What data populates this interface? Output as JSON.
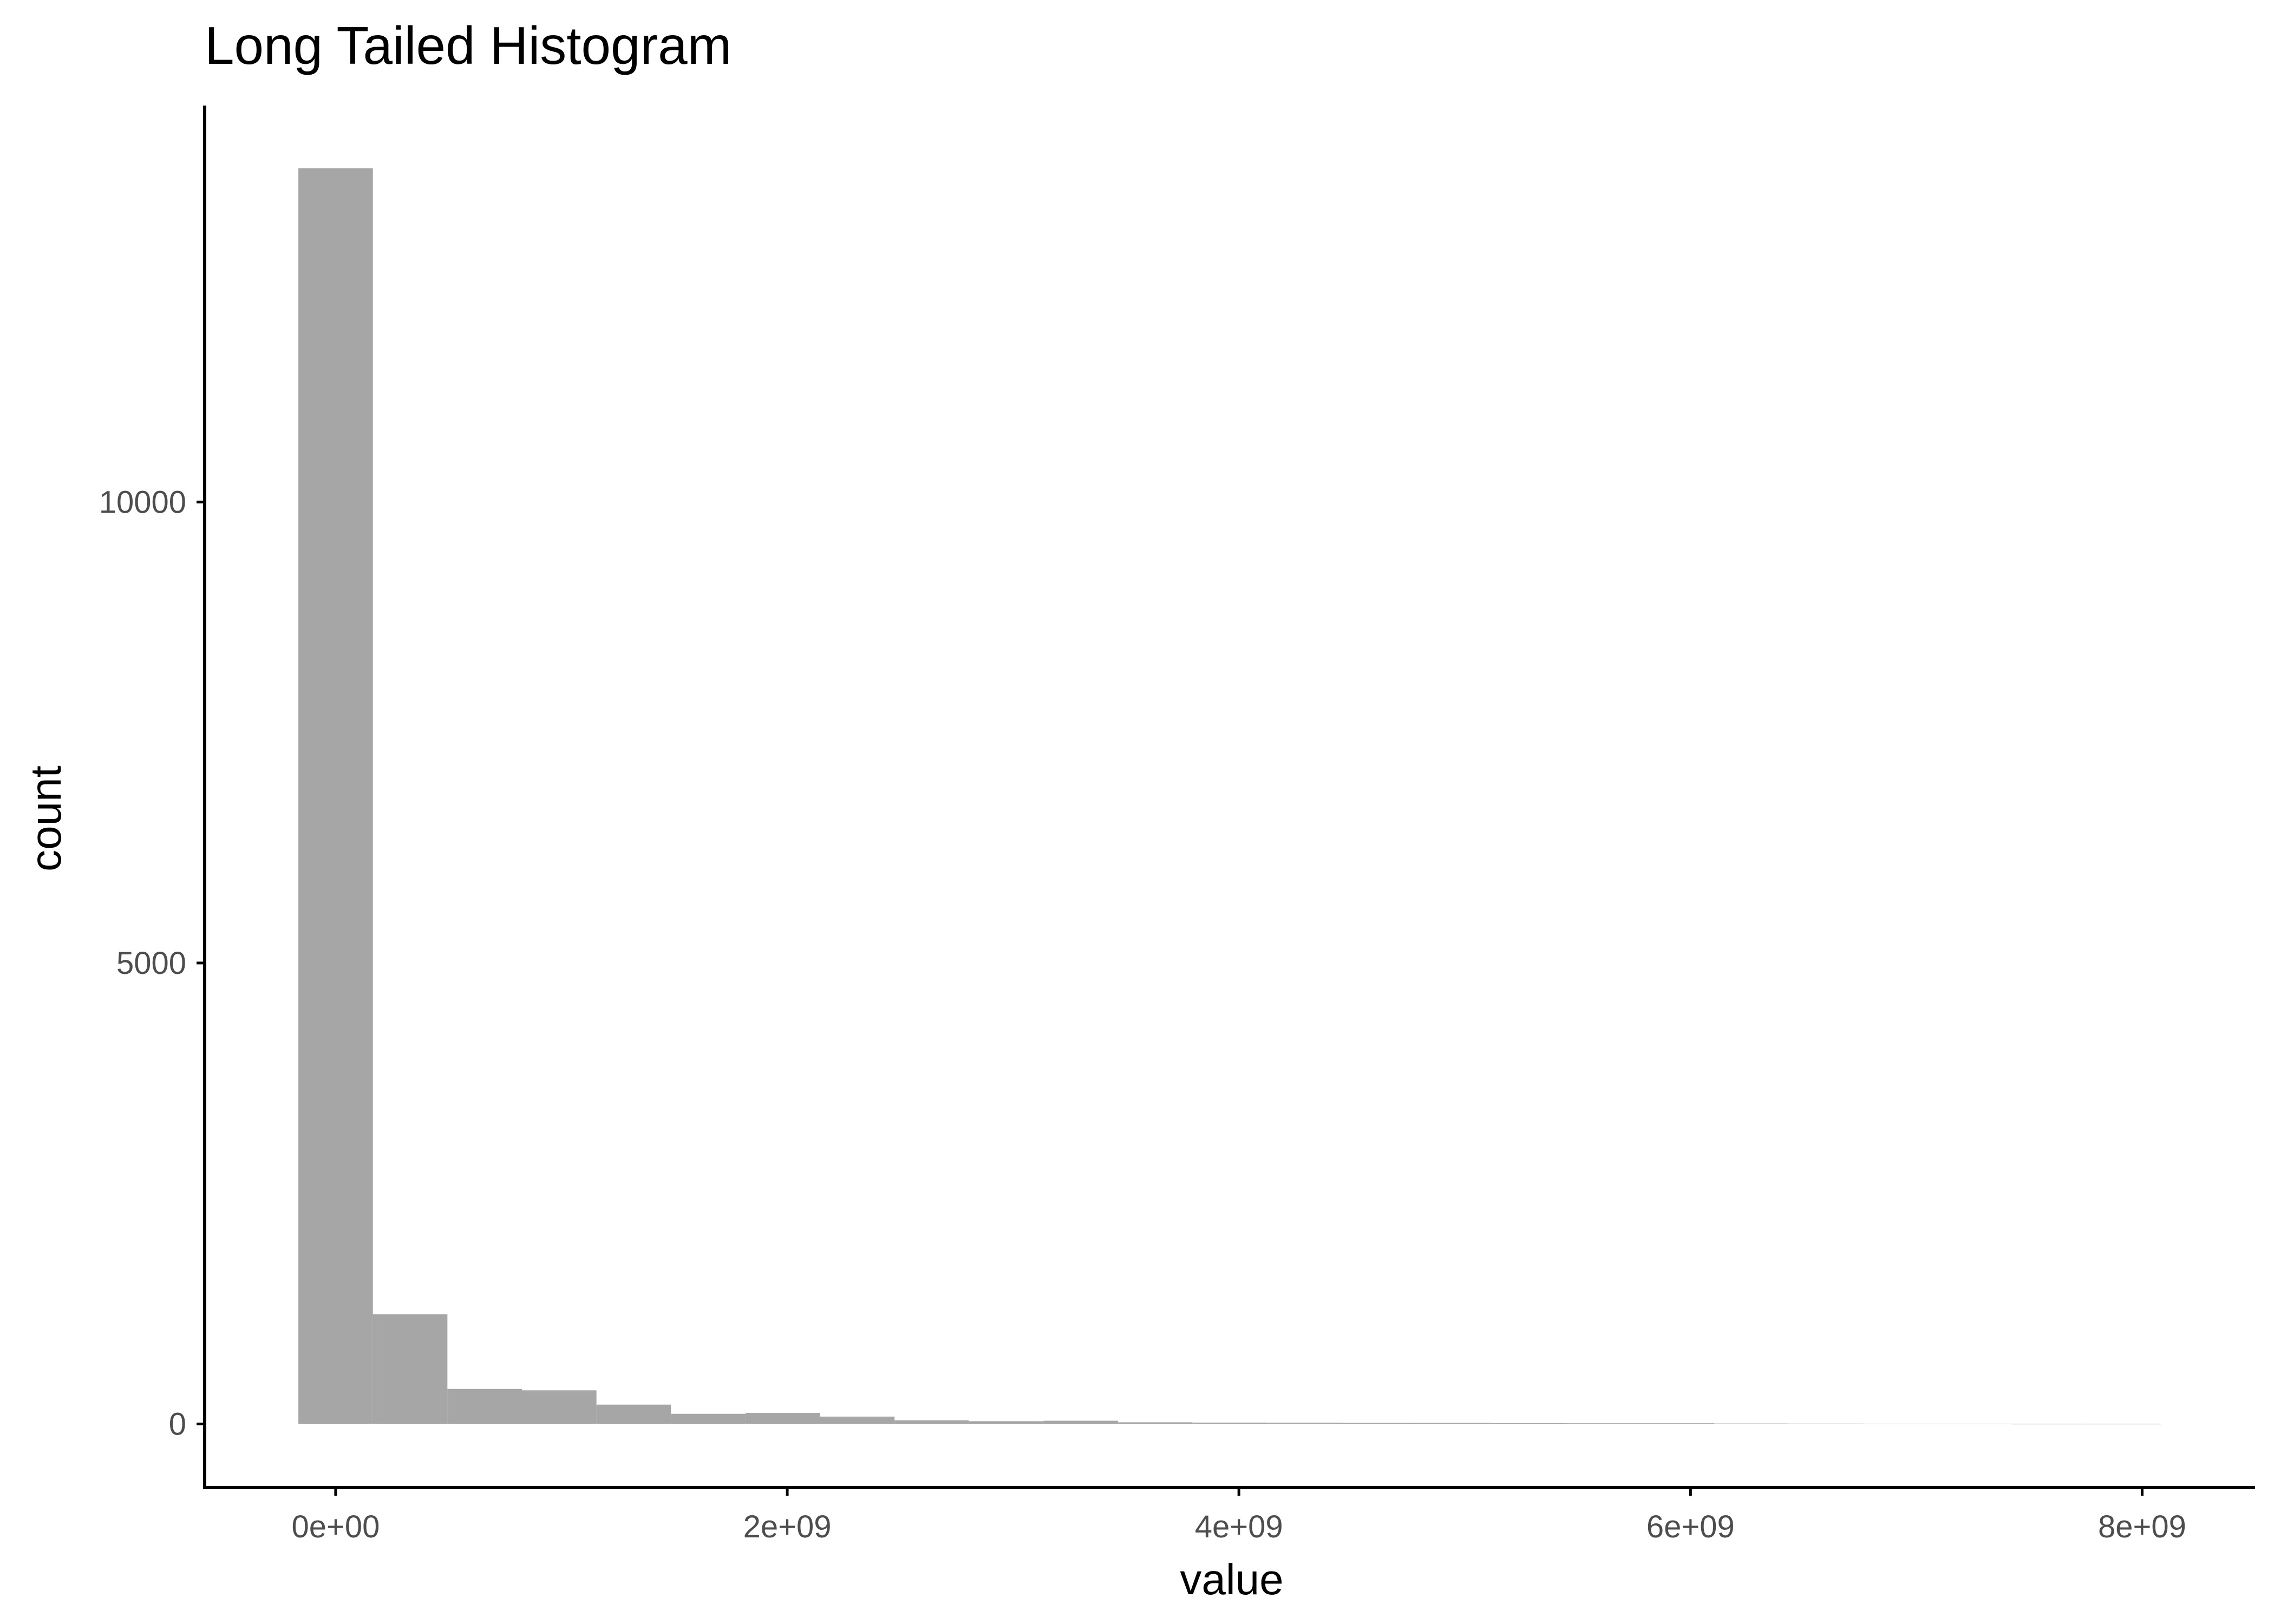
{
  "chart_data": {
    "type": "bar",
    "title": "Long Tailed Histogram",
    "xlabel": "value",
    "ylabel": "count",
    "bin_width": 330000000,
    "bins": [
      {
        "x0": -165000000,
        "x1": 165000000,
        "count": 13620
      },
      {
        "x0": 165000000,
        "x1": 495000000,
        "count": 1190
      },
      {
        "x0": 495000000,
        "x1": 825000000,
        "count": 380
      },
      {
        "x0": 825000000,
        "x1": 1155000000,
        "count": 365
      },
      {
        "x0": 1155000000,
        "x1": 1485000000,
        "count": 210
      },
      {
        "x0": 1485000000,
        "x1": 1815000000,
        "count": 110
      },
      {
        "x0": 1815000000,
        "x1": 2145000000,
        "count": 120
      },
      {
        "x0": 2145000000,
        "x1": 2475000000,
        "count": 80
      },
      {
        "x0": 2475000000,
        "x1": 2805000000,
        "count": 40
      },
      {
        "x0": 2805000000,
        "x1": 3135000000,
        "count": 30
      },
      {
        "x0": 3135000000,
        "x1": 3465000000,
        "count": 35
      },
      {
        "x0": 3465000000,
        "x1": 3795000000,
        "count": 18
      },
      {
        "x0": 3795000000,
        "x1": 4125000000,
        "count": 15
      },
      {
        "x0": 4125000000,
        "x1": 4455000000,
        "count": 14
      },
      {
        "x0": 4455000000,
        "x1": 4785000000,
        "count": 12
      },
      {
        "x0": 4785000000,
        "x1": 5115000000,
        "count": 12
      },
      {
        "x0": 5115000000,
        "x1": 5445000000,
        "count": 9
      },
      {
        "x0": 5445000000,
        "x1": 5775000000,
        "count": 8
      },
      {
        "x0": 5775000000,
        "x1": 6105000000,
        "count": 8
      },
      {
        "x0": 6105000000,
        "x1": 6435000000,
        "count": 5
      },
      {
        "x0": 6435000000,
        "x1": 6765000000,
        "count": 4
      },
      {
        "x0": 6765000000,
        "x1": 7095000000,
        "count": 3
      },
      {
        "x0": 7095000000,
        "x1": 7425000000,
        "count": 3
      },
      {
        "x0": 7425000000,
        "x1": 7755000000,
        "count": 2
      },
      {
        "x0": 7755000000,
        "x1": 8085000000,
        "count": 2
      }
    ],
    "xlim": [
      -580000000,
      8500000000
    ],
    "ylim": [
      -690,
      14300
    ],
    "x_ticks": [
      {
        "value": 0,
        "label": "0e+00"
      },
      {
        "value": 2000000000,
        "label": "2e+09"
      },
      {
        "value": 4000000000,
        "label": "4e+09"
      },
      {
        "value": 6000000000,
        "label": "6e+09"
      },
      {
        "value": 8000000000,
        "label": "8e+09"
      }
    ],
    "y_ticks": [
      {
        "value": 0,
        "label": "0"
      },
      {
        "value": 5000,
        "label": "5000"
      },
      {
        "value": 10000,
        "label": "10000"
      }
    ],
    "grid": false,
    "bar_color": "#a6a6a6",
    "axis_color": "#000000",
    "tick_label_color": "#4d4d4d"
  }
}
